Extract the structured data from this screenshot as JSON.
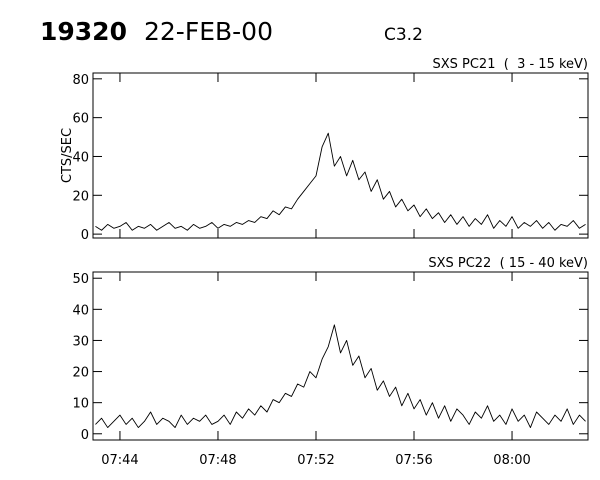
{
  "header": {
    "id": "19320",
    "date": "22-FEB-00",
    "class": "C3.2"
  },
  "chart_data": [
    {
      "type": "line",
      "title": "SXS PC21  (  3 - 15 keV)",
      "y_label": "CTS/SEC",
      "color": "#000000",
      "x": [
        463,
        463.25,
        463.5,
        463.75,
        464,
        464.25,
        464.5,
        464.75,
        465,
        465.25,
        465.5,
        465.75,
        466,
        466.25,
        466.5,
        466.75,
        467,
        467.25,
        467.5,
        467.75,
        468,
        468.25,
        468.5,
        468.75,
        469,
        469.25,
        469.5,
        469.75,
        470,
        470.25,
        470.5,
        470.75,
        471,
        471.25,
        471.5,
        471.75,
        472,
        472.25,
        472.5,
        472.75,
        473,
        473.25,
        473.5,
        473.75,
        474,
        474.25,
        474.5,
        474.75,
        475,
        475.25,
        475.5,
        475.75,
        476,
        476.25,
        476.5,
        476.75,
        477,
        477.25,
        477.5,
        477.75,
        478,
        478.25,
        478.5,
        478.75,
        479,
        479.25,
        479.5,
        479.75,
        480,
        480.25,
        480.5,
        480.75,
        481,
        481.25,
        481.5,
        481.75,
        482,
        482.25,
        482.5,
        482.75,
        483
      ],
      "values": [
        4,
        2,
        5,
        3,
        4,
        6,
        2,
        4,
        3,
        5,
        2,
        4,
        6,
        3,
        4,
        2,
        5,
        3,
        4,
        6,
        3,
        5,
        4,
        6,
        5,
        7,
        6,
        9,
        8,
        12,
        10,
        14,
        13,
        18,
        22,
        26,
        30,
        45,
        52,
        35,
        40,
        30,
        38,
        28,
        32,
        22,
        28,
        18,
        22,
        14,
        18,
        12,
        15,
        9,
        13,
        8,
        11,
        6,
        10,
        5,
        9,
        4,
        8,
        5,
        10,
        3,
        7,
        4,
        9,
        3,
        6,
        4,
        7,
        3,
        6,
        2,
        5,
        4,
        7,
        3,
        5
      ],
      "xlim": [
        462.9,
        483.1
      ],
      "xticks": [
        464,
        468,
        472,
        476,
        480
      ],
      "ylim": [
        -2,
        83
      ],
      "yticks": [
        0,
        20,
        40,
        60,
        80
      ]
    },
    {
      "type": "line",
      "title": "SXS PC22  ( 15 - 40 keV)",
      "color": "#000000",
      "x": [
        463,
        463.25,
        463.5,
        463.75,
        464,
        464.25,
        464.5,
        464.75,
        465,
        465.25,
        465.5,
        465.75,
        466,
        466.25,
        466.5,
        466.75,
        467,
        467.25,
        467.5,
        467.75,
        468,
        468.25,
        468.5,
        468.75,
        469,
        469.25,
        469.5,
        469.75,
        470,
        470.25,
        470.5,
        470.75,
        471,
        471.25,
        471.5,
        471.75,
        472,
        472.25,
        472.5,
        472.75,
        473,
        473.25,
        473.5,
        473.75,
        474,
        474.25,
        474.5,
        474.75,
        475,
        475.25,
        475.5,
        475.75,
        476,
        476.25,
        476.5,
        476.75,
        477,
        477.25,
        477.5,
        477.75,
        478,
        478.25,
        478.5,
        478.75,
        479,
        479.25,
        479.5,
        479.75,
        480,
        480.25,
        480.5,
        480.75,
        481,
        481.25,
        481.5,
        481.75,
        482,
        482.25,
        482.5,
        482.75,
        483
      ],
      "values": [
        3,
        5,
        2,
        4,
        6,
        3,
        5,
        2,
        4,
        7,
        3,
        5,
        4,
        2,
        6,
        3,
        5,
        4,
        6,
        3,
        4,
        6,
        3,
        7,
        5,
        8,
        6,
        9,
        7,
        11,
        10,
        13,
        12,
        16,
        15,
        20,
        18,
        24,
        28,
        35,
        26,
        30,
        22,
        25,
        18,
        21,
        14,
        17,
        12,
        15,
        9,
        13,
        8,
        11,
        6,
        10,
        5,
        9,
        4,
        8,
        6,
        3,
        7,
        5,
        9,
        4,
        6,
        3,
        8,
        4,
        6,
        2,
        7,
        5,
        3,
        6,
        4,
        8,
        3,
        6,
        4
      ],
      "xlim": [
        462.9,
        483.1
      ],
      "xticks": [
        {
          "value": 464,
          "label": "07:44"
        },
        {
          "value": 468,
          "label": "07:48"
        },
        {
          "value": 472,
          "label": "07:52"
        },
        {
          "value": 476,
          "label": "07:56"
        },
        {
          "value": 480,
          "label": "08:00"
        }
      ],
      "ylim": [
        -2,
        52
      ],
      "yticks": [
        0,
        10,
        20,
        30,
        40,
        50
      ]
    }
  ]
}
